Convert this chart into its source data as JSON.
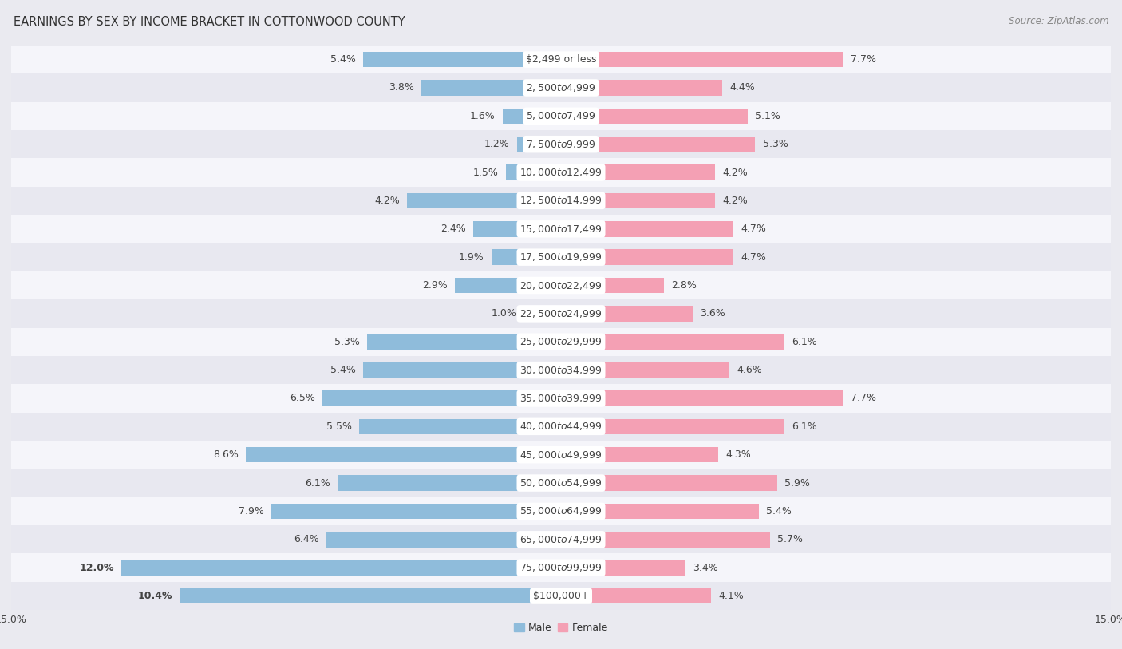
{
  "title": "EARNINGS BY SEX BY INCOME BRACKET IN COTTONWOOD COUNTY",
  "source": "Source: ZipAtlas.com",
  "categories": [
    "$2,499 or less",
    "$2,500 to $4,999",
    "$5,000 to $7,499",
    "$7,500 to $9,999",
    "$10,000 to $12,499",
    "$12,500 to $14,999",
    "$15,000 to $17,499",
    "$17,500 to $19,999",
    "$20,000 to $22,499",
    "$22,500 to $24,999",
    "$25,000 to $29,999",
    "$30,000 to $34,999",
    "$35,000 to $39,999",
    "$40,000 to $44,999",
    "$45,000 to $49,999",
    "$50,000 to $54,999",
    "$55,000 to $64,999",
    "$65,000 to $74,999",
    "$75,000 to $99,999",
    "$100,000+"
  ],
  "male_values": [
    5.4,
    3.8,
    1.6,
    1.2,
    1.5,
    4.2,
    2.4,
    1.9,
    2.9,
    1.0,
    5.3,
    5.4,
    6.5,
    5.5,
    8.6,
    6.1,
    7.9,
    6.4,
    12.0,
    10.4
  ],
  "female_values": [
    7.7,
    4.4,
    5.1,
    5.3,
    4.2,
    4.2,
    4.7,
    4.7,
    2.8,
    3.6,
    6.1,
    4.6,
    7.7,
    6.1,
    4.3,
    5.9,
    5.4,
    5.7,
    3.4,
    4.1
  ],
  "male_color": "#8fbcdb",
  "female_color": "#f4a0b4",
  "row_color_even": "#e8e8f0",
  "row_color_odd": "#f5f5fa",
  "xlim": 15.0,
  "bar_height": 0.55,
  "label_fontsize": 9.0,
  "cat_label_fontsize": 9.0,
  "title_fontsize": 10.5,
  "source_fontsize": 8.5,
  "value_color": "#444444",
  "cat_label_color": "#444444",
  "background_color": "#eaeaf0"
}
